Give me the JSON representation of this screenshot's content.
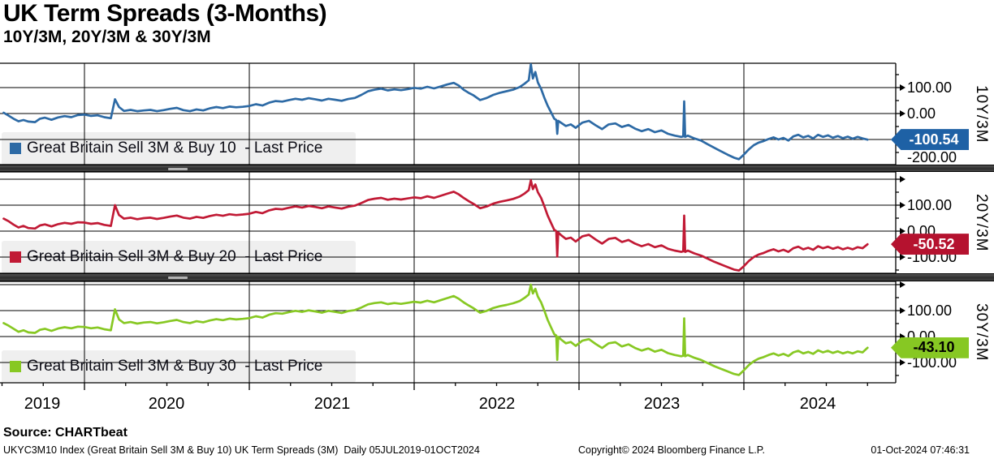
{
  "header": {
    "title": "UK Term Spreads (3-Months)",
    "subtitle": "10Y/3M, 20Y/3M & 30Y/3M"
  },
  "footer": {
    "source": "Source: CHARTbeat",
    "left": "UKYC3M10 Index (Great Britain Sell 3M & Buy 10) UK Term Spreads (3M)  Daily 05JUL2019-01OCT2024",
    "copyright": "Copyright© 2024 Bloomberg Finance L.P.",
    "timestamp": "01-Oct-2024 07:46:31"
  },
  "chart_data": {
    "type": "line",
    "title": "UK Term Spreads (3-Months)",
    "subtitle": "10Y/3M, 20Y/3M & 30Y/3M",
    "x_axis": {
      "range_text": "05JUL2019-01OCT2024",
      "year_labels": [
        "2019",
        "2020",
        "2021",
        "2022",
        "2023",
        "2024"
      ],
      "gridline_years": [
        2020,
        2021,
        2022,
        2023,
        2024
      ]
    },
    "x_t": [
      2019.51,
      2019.54,
      2019.57,
      2019.6,
      2019.63,
      2019.66,
      2019.7,
      2019.73,
      2019.76,
      2019.8,
      2019.84,
      2019.88,
      2019.92,
      2019.96,
      2020.0,
      2020.04,
      2020.08,
      2020.12,
      2020.16,
      2020.185,
      2020.21,
      2020.24,
      2020.28,
      2020.32,
      2020.36,
      2020.4,
      2020.44,
      2020.48,
      2020.52,
      2020.56,
      2020.6,
      2020.64,
      2020.68,
      2020.72,
      2020.76,
      2020.8,
      2020.84,
      2020.88,
      2020.92,
      2020.96,
      2021.0,
      2021.04,
      2021.08,
      2021.12,
      2021.16,
      2021.2,
      2021.24,
      2021.28,
      2021.32,
      2021.36,
      2021.4,
      2021.44,
      2021.48,
      2021.52,
      2021.56,
      2021.6,
      2021.64,
      2021.68,
      2021.72,
      2021.76,
      2021.8,
      2021.84,
      2021.88,
      2021.92,
      2021.96,
      2022.0,
      2022.04,
      2022.08,
      2022.12,
      2022.16,
      2022.2,
      2022.24,
      2022.27,
      2022.3,
      2022.33,
      2022.36,
      2022.4,
      2022.44,
      2022.48,
      2022.52,
      2022.56,
      2022.6,
      2022.64,
      2022.67,
      2022.695,
      2022.708,
      2022.72,
      2022.735,
      2022.75,
      2022.77,
      2022.79,
      2022.81,
      2022.83,
      2022.85,
      2022.862,
      2022.868,
      2022.874,
      2022.89,
      2022.92,
      2022.95,
      2022.98,
      2023.02,
      2023.06,
      2023.1,
      2023.14,
      2023.18,
      2023.22,
      2023.26,
      2023.3,
      2023.34,
      2023.38,
      2023.42,
      2023.46,
      2023.5,
      2023.54,
      2023.58,
      2023.62,
      2023.632,
      2023.638,
      2023.644,
      2023.66,
      2023.7,
      2023.74,
      2023.78,
      2023.82,
      2023.86,
      2023.9,
      2023.94,
      2023.97,
      2024.0,
      2024.03,
      2024.06,
      2024.09,
      2024.12,
      2024.15,
      2024.18,
      2024.21,
      2024.24,
      2024.27,
      2024.3,
      2024.33,
      2024.36,
      2024.39,
      2024.42,
      2024.45,
      2024.48,
      2024.51,
      2024.54,
      2024.57,
      2024.6,
      2024.63,
      2024.66,
      2024.69,
      2024.72,
      2024.75
    ],
    "panels": [
      {
        "id": "10y3m",
        "axis_title": "10Y/3M",
        "legend": "Great Britain Sell 3M & Buy 10  - Last Price",
        "color": "#2d6aa5",
        "badge_color": "#1e61a5",
        "badge_text_color": "#ffffff",
        "last_price": "-100.54",
        "last_price_value": -100.54,
        "tick_labels": [
          {
            "value": 100,
            "label": "100.00"
          },
          {
            "value": 0,
            "label": "0.00"
          },
          {
            "value": -200,
            "label": "-200.00"
          }
        ],
        "values": [
          3,
          -8,
          -20,
          -30,
          -25,
          -31,
          -33,
          -20,
          -16,
          -24,
          -15,
          -10,
          -14,
          -6,
          -4,
          -9,
          -7,
          -14,
          -18,
          55,
          25,
          10,
          14,
          9,
          12,
          14,
          9,
          13,
          18,
          22,
          13,
          9,
          16,
          12,
          20,
          25,
          21,
          27,
          24,
          26,
          29,
          36,
          31,
          42,
          48,
          46,
          52,
          57,
          53,
          59,
          55,
          50,
          57,
          53,
          49,
          56,
          60,
          72,
          86,
          92,
          96,
          89,
          93,
          90,
          94,
          99,
          96,
          103,
          97,
          104,
          112,
          118,
          108,
          92,
          80,
          70,
          52,
          60,
          72,
          80,
          86,
          92,
          102,
          115,
          128,
          190,
          135,
          160,
          120,
          95,
          60,
          30,
          5,
          -20,
          -25,
          -78,
          -28,
          -35,
          -48,
          -42,
          -55,
          -35,
          -28,
          -45,
          -60,
          -42,
          -38,
          -52,
          -44,
          -58,
          -68,
          -60,
          -72,
          -65,
          -78,
          -85,
          -90,
          -88,
          47,
          -90,
          -85,
          -96,
          -104,
          -118,
          -132,
          -145,
          -158,
          -170,
          -176,
          -158,
          -138,
          -122,
          -112,
          -106,
          -98,
          -92,
          -100,
          -94,
          -104,
          -88,
          -82,
          -92,
          -86,
          -96,
          -82,
          -90,
          -84,
          -93,
          -87,
          -95,
          -89,
          -97,
          -90,
          -96,
          -100.54
        ]
      },
      {
        "id": "20y3m",
        "axis_title": "20Y/3M",
        "legend": "Great Britain Sell 3M & Buy 20  - Last Price",
        "color": "#c11a35",
        "badge_color": "#b5122f",
        "badge_text_color": "#ffffff",
        "last_price": "-50.52",
        "last_price_value": -50.52,
        "tick_labels": [
          {
            "value": 100,
            "label": "100.00"
          },
          {
            "value": 0,
            "label": "0.00"
          },
          {
            "value": -100,
            "label": "-100.00"
          }
        ],
        "values": [
          48,
          38,
          25,
          14,
          20,
          12,
          10,
          22,
          26,
          18,
          27,
          32,
          28,
          34,
          33,
          28,
          31,
          24,
          20,
          100,
          62,
          48,
          52,
          46,
          50,
          52,
          47,
          51,
          56,
          60,
          52,
          48,
          55,
          51,
          58,
          63,
          59,
          65,
          62,
          64,
          67,
          74,
          69,
          80,
          86,
          84,
          90,
          95,
          91,
          97,
          93,
          88,
          95,
          91,
          87,
          94,
          98,
          108,
          120,
          125,
          128,
          121,
          125,
          122,
          126,
          130,
          127,
          134,
          128,
          136,
          144,
          152,
          142,
          128,
          116,
          105,
          88,
          95,
          106,
          113,
          118,
          124,
          133,
          145,
          158,
          196,
          162,
          180,
          150,
          128,
          95,
          60,
          32,
          5,
          0,
          -98,
          -5,
          -15,
          -30,
          -25,
          -40,
          -20,
          -14,
          -32,
          -48,
          -30,
          -26,
          -42,
          -34,
          -48,
          -58,
          -50,
          -62,
          -55,
          -68,
          -75,
          -80,
          -78,
          60,
          -80,
          -75,
          -86,
          -94,
          -106,
          -118,
          -128,
          -138,
          -148,
          -152,
          -135,
          -115,
          -100,
          -90,
          -84,
          -76,
          -70,
          -78,
          -72,
          -80,
          -66,
          -60,
          -70,
          -64,
          -72,
          -58,
          -66,
          -60,
          -68,
          -62,
          -70,
          -64,
          -70,
          -62,
          -66,
          -50.52
        ]
      },
      {
        "id": "30y3m",
        "axis_title": "30Y/3M",
        "legend": "Great Britain Sell 3M & Buy 30  - Last Price",
        "color": "#87c823",
        "badge_color": "#87c823",
        "badge_text_color": "#000000",
        "last_price": "-43.10",
        "last_price_value": -43.1,
        "tick_labels": [
          {
            "value": 100,
            "label": "100.00"
          },
          {
            "value": 0,
            "label": "0.00"
          },
          {
            "value": -100,
            "label": "-100.00"
          }
        ],
        "values": [
          52,
          42,
          30,
          18,
          24,
          16,
          14,
          26,
          30,
          22,
          31,
          36,
          32,
          38,
          37,
          32,
          35,
          28,
          24,
          105,
          66,
          52,
          56,
          50,
          54,
          56,
          51,
          55,
          60,
          64,
          56,
          52,
          59,
          55,
          62,
          67,
          63,
          69,
          66,
          68,
          71,
          78,
          73,
          84,
          90,
          88,
          94,
          99,
          95,
          101,
          97,
          92,
          99,
          95,
          91,
          98,
          102,
          112,
          124,
          129,
          132,
          125,
          129,
          126,
          130,
          134,
          131,
          138,
          132,
          140,
          148,
          156,
          146,
          132,
          120,
          109,
          92,
          99,
          110,
          117,
          122,
          128,
          137,
          149,
          162,
          200,
          166,
          184,
          154,
          132,
          99,
          64,
          36,
          9,
          4,
          -90,
          -1,
          -11,
          -26,
          -21,
          -36,
          -16,
          -10,
          -28,
          -44,
          -26,
          -22,
          -38,
          -30,
          -44,
          -54,
          -46,
          -58,
          -51,
          -64,
          -71,
          -76,
          -74,
          70,
          -76,
          -71,
          -82,
          -90,
          -102,
          -114,
          -124,
          -134,
          -144,
          -148,
          -130,
          -110,
          -95,
          -85,
          -79,
          -71,
          -65,
          -73,
          -67,
          -75,
          -61,
          -55,
          -65,
          -59,
          -67,
          -53,
          -61,
          -55,
          -63,
          -57,
          -65,
          -59,
          -65,
          -57,
          -61,
          -43.1
        ]
      }
    ]
  }
}
